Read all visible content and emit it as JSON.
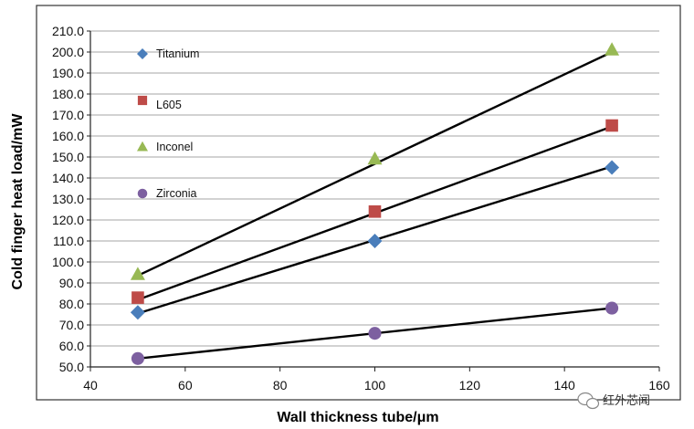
{
  "chart_data": {
    "type": "scatter",
    "title": "",
    "xlabel": "Wall thickness tube/μm",
    "ylabel": "Cold finger heat load/mW",
    "xlim": [
      40,
      160
    ],
    "ylim": [
      50,
      210
    ],
    "xticks": [
      40,
      60,
      80,
      100,
      120,
      140,
      160
    ],
    "yticks": [
      50,
      60,
      70,
      80,
      90,
      100,
      110,
      120,
      130,
      140,
      150,
      160,
      170,
      180,
      190,
      200,
      210
    ],
    "ytick_decimals": 1,
    "grid": "horizontal",
    "legend_position": "top-left",
    "series": [
      {
        "name": "Titanium",
        "marker": "diamond",
        "color": "#4a7ebb",
        "x": [
          50,
          100,
          150
        ],
        "y": [
          76,
          110,
          145
        ],
        "trendline": {
          "x": [
            50,
            150
          ],
          "y": [
            75.5,
            145.5
          ]
        }
      },
      {
        "name": "L605",
        "marker": "square",
        "color": "#be4b48",
        "x": [
          50,
          100,
          150
        ],
        "y": [
          83,
          124,
          165
        ],
        "trendline": {
          "x": [
            50,
            150
          ],
          "y": [
            82,
            164.5
          ]
        }
      },
      {
        "name": "Inconel",
        "marker": "triangle",
        "color": "#98b954",
        "x": [
          50,
          100,
          150
        ],
        "y": [
          94,
          149,
          201
        ],
        "trendline": {
          "x": [
            50,
            150
          ],
          "y": [
            93.5,
            200
          ]
        }
      },
      {
        "name": "Zirconia",
        "marker": "circle",
        "color": "#7d60a0",
        "x": [
          50,
          100,
          150
        ],
        "y": [
          54,
          66,
          78
        ],
        "trendline": {
          "x": [
            50,
            150
          ],
          "y": [
            54,
            78
          ]
        }
      }
    ]
  },
  "watermark": {
    "text": "红外芯闻",
    "icon": "wechat-icon"
  }
}
